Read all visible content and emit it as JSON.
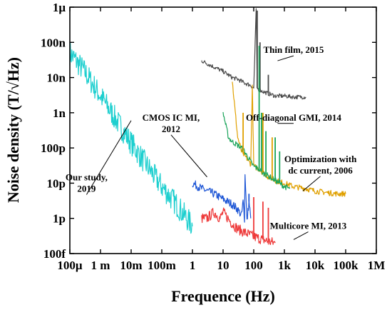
{
  "chart_data": {
    "type": "line",
    "xlabel": "Frequence (Hz)",
    "ylabel": "Noise density (T/√Hz)",
    "x_scale": "log",
    "y_scale": "log",
    "xlim": [
      0.0001,
      1000000
    ],
    "ylim": [
      1e-13,
      1e-06
    ],
    "grid": false,
    "x_ticks": [
      {
        "v": 0.0001,
        "label": "100μ"
      },
      {
        "v": 0.001,
        "label": "1 m"
      },
      {
        "v": 0.01,
        "label": "10m"
      },
      {
        "v": 0.1,
        "label": "100m"
      },
      {
        "v": 1,
        "label": "1"
      },
      {
        "v": 10,
        "label": "10"
      },
      {
        "v": 100,
        "label": "100"
      },
      {
        "v": 1000,
        "label": "1k"
      },
      {
        "v": 10000,
        "label": "10k"
      },
      {
        "v": 100000,
        "label": "100k"
      },
      {
        "v": 1000000,
        "label": "1M"
      }
    ],
    "y_ticks": [
      {
        "v": 1e-13,
        "label": "100f"
      },
      {
        "v": 1e-12,
        "label": "1p"
      },
      {
        "v": 1e-11,
        "label": "10p"
      },
      {
        "v": 1e-10,
        "label": "100p"
      },
      {
        "v": 1e-09,
        "label": "1n"
      },
      {
        "v": 1e-08,
        "label": "10n"
      },
      {
        "v": 1e-07,
        "label": "100n"
      },
      {
        "v": 1e-06,
        "label": "1μ"
      }
    ],
    "series": [
      {
        "color": "#1ecfcf",
        "noise": 0.35,
        "x": [
          0.0001,
          0.0003,
          0.001,
          0.003,
          0.01,
          0.03,
          0.1,
          0.3,
          1
        ],
        "y": [
          5e-08,
          1.5e-08,
          3e-09,
          7e-10,
          1.4e-10,
          3.5e-11,
          8e-12,
          2.5e-12,
          6e-13
        ]
      },
      {
        "color": "#1f57d6",
        "noise": 0.12,
        "x": [
          1,
          2,
          3,
          5,
          10,
          20,
          30,
          40,
          45,
          50,
          52,
          60,
          70,
          80
        ],
        "y": [
          1e-11,
          7e-12,
          6e-12,
          5e-12,
          3.5e-12,
          2.5e-12,
          1.8e-12,
          1.2e-12,
          3e-12,
          1e-12,
          2e-11,
          8e-13,
          3e-12,
          1e-12
        ]
      },
      {
        "color": "#ee3a3a",
        "noise": 0.15,
        "x": [
          2,
          3,
          5,
          8,
          10,
          20,
          30,
          50,
          70,
          100,
          200,
          300,
          500
        ],
        "y": [
          1e-12,
          1e-12,
          1.5e-12,
          1e-12,
          1.5e-12,
          7e-13,
          5e-13,
          4e-13,
          3.5e-13,
          3e-13,
          2.5e-13,
          2.2e-13,
          2e-13
        ]
      },
      {
        "color": "#4a4a4a",
        "noise": 0.06,
        "x": [
          2,
          3,
          5,
          10,
          20,
          30,
          50,
          80,
          100,
          120,
          130,
          150,
          200,
          300,
          500,
          1000,
          2000,
          5000
        ],
        "y": [
          3e-08,
          2.5e-08,
          2e-08,
          1.5e-08,
          1e-08,
          9e-09,
          7e-09,
          6e-09,
          5e-09,
          8e-07,
          5e-09,
          4.5e-09,
          4e-09,
          3.5e-09,
          3e-09,
          3e-09,
          2.8e-09,
          2.8e-09
        ]
      },
      {
        "color": "#e0a000",
        "noise": 0.08,
        "x": [
          20,
          25,
          30,
          40,
          50,
          60,
          70,
          80,
          90,
          100,
          150,
          200,
          300,
          500,
          1000,
          2000,
          5000,
          10000,
          20000,
          50000,
          100000
        ],
        "y": [
          8e-09,
          1e-09,
          2e-10,
          8e-11,
          6e-11,
          5e-11,
          4e-11,
          3.5e-11,
          6e-09,
          3e-11,
          2.5e-11,
          2e-11,
          1.5e-11,
          1.2e-11,
          1e-11,
          8e-12,
          7e-12,
          6e-12,
          5.5e-12,
          5e-12,
          5e-12
        ]
      },
      {
        "color": "#1aa45a",
        "noise": 0.08,
        "x": [
          10,
          15,
          20,
          30,
          40,
          50,
          60,
          70,
          80,
          100,
          150,
          200,
          300,
          500,
          1000,
          1500
        ],
        "y": [
          1e-09,
          2e-10,
          1.5e-10,
          1.2e-10,
          1e-10,
          8e-11,
          6e-11,
          5e-11,
          4e-11,
          3e-11,
          2.5e-11,
          2e-11,
          1.6e-11,
          1.2e-11,
          8e-12,
          7e-12
        ]
      }
    ],
    "spikes": [
      {
        "series": 3,
        "x": 130,
        "y": 8e-07
      },
      {
        "series": 3,
        "x": 160,
        "y": 1e-07
      },
      {
        "series": 3,
        "x": 300,
        "y": 1.2e-08
      },
      {
        "series": 4,
        "x": 90,
        "y": 6e-09
      },
      {
        "series": 4,
        "x": 45,
        "y": 1e-09
      },
      {
        "series": 4,
        "x": 200,
        "y": 1e-09
      },
      {
        "series": 4,
        "x": 400,
        "y": 2e-10
      },
      {
        "series": 5,
        "x": 150,
        "y": 8e-08
      },
      {
        "series": 5,
        "x": 180,
        "y": 1e-09
      },
      {
        "series": 5,
        "x": 250,
        "y": 3e-10
      },
      {
        "series": 5,
        "x": 500,
        "y": 2e-10
      },
      {
        "series": 5,
        "x": 700,
        "y": 8e-11
      },
      {
        "series": 1,
        "x": 52,
        "y": 2e-11
      },
      {
        "series": 1,
        "x": 70,
        "y": 5e-12
      },
      {
        "series": 2,
        "x": 100,
        "y": 4e-12
      },
      {
        "series": 2,
        "x": 200,
        "y": 3e-12
      },
      {
        "series": 2,
        "x": 300,
        "y": 2e-12
      }
    ],
    "annotations": [
      {
        "id": "our-study",
        "lines": [
          "Our study,",
          "2019"
        ],
        "x": 0.00035,
        "y": 1.2e-11,
        "arrow_to": {
          "x": 0.01,
          "y": 6e-10
        }
      },
      {
        "id": "cmos",
        "lines": [
          "CMOS IC MI,",
          "2012"
        ],
        "x": 0.2,
        "y": 6e-10,
        "arrow_to": {
          "x": 3,
          "y": 1.5e-11
        }
      },
      {
        "id": "thin-film",
        "lines": [
          "Thin film, 2015"
        ],
        "x": 2000,
        "y": 5e-08,
        "arrow_to": {
          "x": 600,
          "y": 3e-08
        }
      },
      {
        "id": "off-diag",
        "lines": [
          "Off-diagonal GMI, 2014"
        ],
        "x": 2000,
        "y": 6e-10,
        "arrow_to": {
          "x": 600,
          "y": 5e-10
        }
      },
      {
        "id": "optimization",
        "lines": [
          "Optimization with",
          "dc current, 2006"
        ],
        "x": 15000,
        "y": 4e-11,
        "arrow_to": {
          "x": 4000,
          "y": 6e-12
        }
      },
      {
        "id": "multicore",
        "lines": [
          "Multicore MI, 2013"
        ],
        "x": 6000,
        "y": 5e-13,
        "arrow_to": {
          "x": 2000,
          "y": 2.5e-13
        }
      }
    ]
  }
}
